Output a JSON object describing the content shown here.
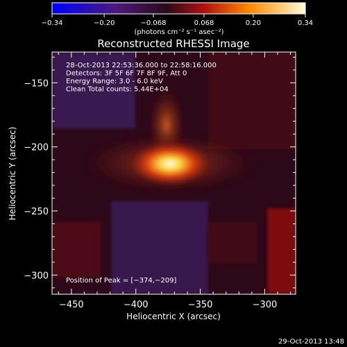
{
  "colorbar": {
    "ticks": [
      "−0.34",
      "−0.20",
      "−0.068",
      "0.068",
      "0.20",
      "0.34"
    ],
    "tick_values": [
      -0.34,
      -0.2,
      -0.068,
      0.068,
      0.2,
      0.34
    ],
    "range": [
      -0.34,
      0.34
    ],
    "unit_label": "(photons cm⁻² s⁻¹ asec⁻²)"
  },
  "chart_data": {
    "type": "heatmap",
    "title": "Reconstructed RHESSI Image",
    "xlabel": "Heliocentric X (arcsec)",
    "ylabel": "Heliocentric Y (arcsec)",
    "xlim": [
      -465,
      -276
    ],
    "ylim": [
      -315,
      -126
    ],
    "x_ticks": [
      -450,
      -400,
      -350,
      -300
    ],
    "x_tick_labels": [
      "−450",
      "−400",
      "−350",
      "−300"
    ],
    "y_ticks": [
      -150,
      -200,
      -250,
      -300
    ],
    "y_tick_labels": [
      "−150",
      "−200",
      "−250",
      "−300"
    ],
    "annotations": [
      "28-Oct-2013 22:53:36.000 to 22:58:16.000",
      "Detectors: 3F 5F 6F 7F 8F 9F, Att 0",
      "Energy Range: 3.0 - 6.0 keV",
      "Clean    Total counts: 5.44E+04"
    ],
    "peak_label": "Position of Peak = [−374,−209]",
    "peak": [
      -374,
      -209
    ],
    "colormap": "rhessi-blue-purple-red-yellow-white"
  },
  "footer_timestamp": "29-Oct-2013 13:48"
}
